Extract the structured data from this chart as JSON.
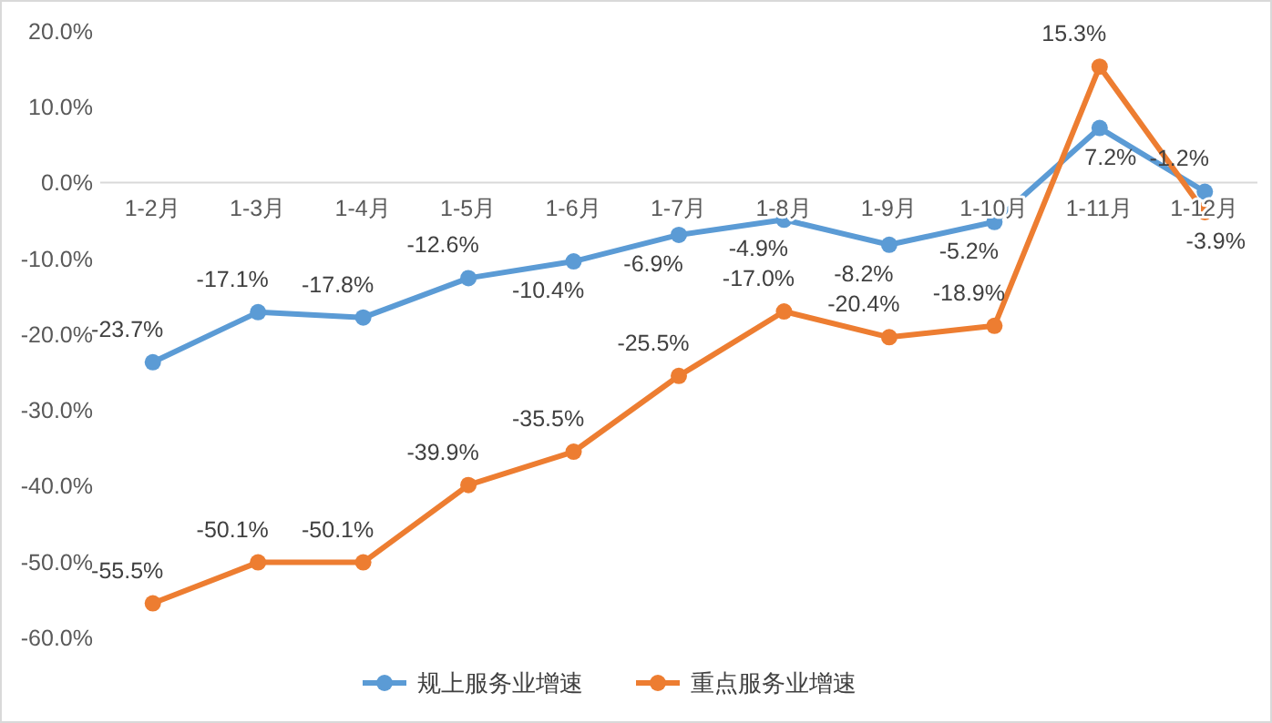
{
  "chart_data": {
    "type": "line",
    "categories": [
      "1-2月",
      "1-3月",
      "1-4月",
      "1-5月",
      "1-6月",
      "1-7月",
      "1-8月",
      "1-9月",
      "1-10月",
      "1-11月",
      "1-12月"
    ],
    "series": [
      {
        "name": "规上服务业增速",
        "color": "#5b9bd5",
        "values": [
          -23.7,
          -17.1,
          -17.8,
          -12.6,
          -10.4,
          -6.9,
          -4.9,
          -8.2,
          -5.2,
          7.2,
          -1.2
        ],
        "value_labels": [
          "-23.7%",
          "-17.1%",
          "-17.8%",
          "-12.6%",
          "-10.4%",
          "-6.9%",
          "-4.9%",
          "-8.2%",
          "-5.2%",
          "7.2%",
          "-1.2%"
        ]
      },
      {
        "name": "重点服务业增速",
        "color": "#ed7d31",
        "values": [
          -55.5,
          -50.1,
          -50.1,
          -39.9,
          -35.5,
          -25.5,
          -17.0,
          -20.4,
          -18.9,
          15.3,
          -3.9
        ],
        "value_labels": [
          "-55.5%",
          "-50.1%",
          "-50.1%",
          "-39.9%",
          "-35.5%",
          "-25.5%",
          "-17.0%",
          "-20.4%",
          "-18.9%",
          "15.3%",
          "-3.9%"
        ]
      }
    ],
    "ylim": [
      -60,
      20
    ],
    "yticks": [
      {
        "value": 20,
        "label": "20.0%"
      },
      {
        "value": 10,
        "label": "10.0%"
      },
      {
        "value": 0,
        "label": "0.0%"
      },
      {
        "value": -10,
        "label": "-10.0%"
      },
      {
        "value": -20,
        "label": "-20.0%"
      },
      {
        "value": -30,
        "label": "-30.0%"
      },
      {
        "value": -40,
        "label": "-40.0%"
      },
      {
        "value": -50,
        "label": "-50.0%"
      },
      {
        "value": -60,
        "label": "-60.0%"
      }
    ],
    "marker": "circle",
    "line_style": "solid",
    "legend": "bottom",
    "grid": false
  }
}
